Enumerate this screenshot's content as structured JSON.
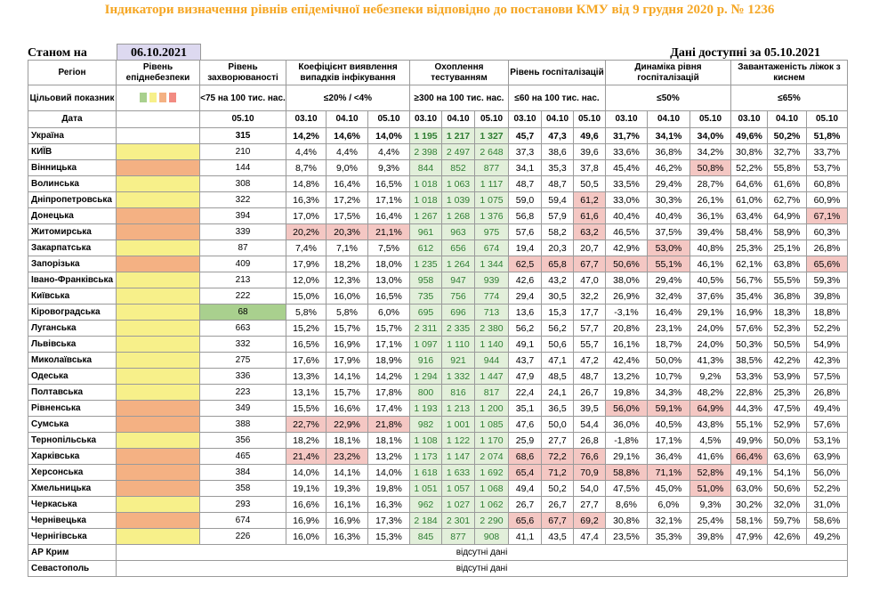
{
  "title": "Індикатори визначення рівнів епідемічної небезпеки відповідно до постанови КМУ від 9 грудня 2020 р. № 1236",
  "as_of_label": "Станом на",
  "as_of_date": "06.10.2021",
  "data_available": "Дані доступні за 05.10.2021",
  "headers": {
    "region": "Регіон",
    "target": "Цільовий показник",
    "date": "Дата",
    "level": "Рівень епіднебезпеки",
    "morbidity": "Рівень захворюваності",
    "morbidity_target": "<75 на 100 тис. нас.",
    "detection": "Коефіцієнт виявлення випадків інфікування",
    "detection_target": "≤20% / <4%",
    "testing": "Охоплення тестуванням",
    "testing_target": "≥300 на 100 тис. нас.",
    "hosp": "Рівень госпіталізацій",
    "hosp_target": "≤60 на 100 тис. нас.",
    "dynamic": "Динаміка рівня госпіталізацій",
    "dynamic_target": "≤50%",
    "beds": "Завантаженість ліжок з киснем",
    "beds_target": "≤65%",
    "level_swatches": [
      "#a9d08e",
      "#f7f08a",
      "#f4b183",
      "#f28b82"
    ],
    "dates": [
      "03.10",
      "04.10",
      "05.10"
    ],
    "single_date": "05.10"
  },
  "missing_text": "відсутні дані",
  "colors": {
    "yellow": "#f7f08a",
    "orange": "#f4b183",
    "green_bg": "#e2efda",
    "red_bg": "#f4c7c3",
    "title": "#f5a623"
  },
  "rows": [
    {
      "region": "Україна",
      "level": "",
      "morb": "315",
      "det": [
        "14,2%",
        "14,6%",
        "14,0%"
      ],
      "test": [
        "1 195",
        "1 217",
        "1 327"
      ],
      "hosp": [
        "45,7",
        "47,3",
        "49,6"
      ],
      "dyn": [
        "31,7%",
        "34,1%",
        "34,0%"
      ],
      "beds": [
        "49,6%",
        "50,2%",
        "51,8%"
      ],
      "hl": []
    },
    {
      "region": "КИЇВ",
      "level": "yellow",
      "morb": "210",
      "det": [
        "4,4%",
        "4,4%",
        "4,4%"
      ],
      "test": [
        "2 398",
        "2 497",
        "2 648"
      ],
      "hosp": [
        "37,3",
        "38,6",
        "39,6"
      ],
      "dyn": [
        "33,6%",
        "36,8%",
        "34,2%"
      ],
      "beds": [
        "30,8%",
        "32,7%",
        "33,7%"
      ],
      "hl": []
    },
    {
      "region": "Вінницька",
      "level": "orange",
      "morb": "144",
      "det": [
        "8,7%",
        "9,0%",
        "9,3%"
      ],
      "test": [
        "844",
        "852",
        "877"
      ],
      "hosp": [
        "34,1",
        "35,3",
        "37,8"
      ],
      "dyn": [
        "45,4%",
        "46,2%",
        "50,8%"
      ],
      "beds": [
        "52,2%",
        "55,8%",
        "53,7%"
      ],
      "hl": [
        "dyn2"
      ]
    },
    {
      "region": "Волинська",
      "level": "yellow",
      "morb": "308",
      "det": [
        "14,8%",
        "16,4%",
        "16,5%"
      ],
      "test": [
        "1 018",
        "1 063",
        "1 117"
      ],
      "hosp": [
        "48,7",
        "48,7",
        "50,5"
      ],
      "dyn": [
        "33,5%",
        "29,4%",
        "28,7%"
      ],
      "beds": [
        "64,6%",
        "61,6%",
        "60,8%"
      ],
      "hl": []
    },
    {
      "region": "Дніпропетровська",
      "level": "yellow",
      "morb": "322",
      "det": [
        "16,3%",
        "17,2%",
        "17,1%"
      ],
      "test": [
        "1 018",
        "1 039",
        "1 075"
      ],
      "hosp": [
        "59,0",
        "59,4",
        "61,2"
      ],
      "dyn": [
        "33,0%",
        "30,3%",
        "26,1%"
      ],
      "beds": [
        "61,0%",
        "62,7%",
        "60,9%"
      ],
      "hl": [
        "hosp2"
      ]
    },
    {
      "region": "Донецька",
      "level": "orange",
      "morb": "394",
      "det": [
        "17,0%",
        "17,5%",
        "16,4%"
      ],
      "test": [
        "1 267",
        "1 268",
        "1 376"
      ],
      "hosp": [
        "56,8",
        "57,9",
        "61,6"
      ],
      "dyn": [
        "40,4%",
        "40,4%",
        "36,1%"
      ],
      "beds": [
        "63,4%",
        "64,9%",
        "67,1%"
      ],
      "hl": [
        "hosp2",
        "beds2"
      ]
    },
    {
      "region": "Житомирська",
      "level": "orange",
      "morb": "339",
      "det": [
        "20,2%",
        "20,3%",
        "21,1%"
      ],
      "test": [
        "961",
        "963",
        "975"
      ],
      "hosp": [
        "57,6",
        "58,2",
        "63,2"
      ],
      "dyn": [
        "46,5%",
        "37,5%",
        "39,4%"
      ],
      "beds": [
        "58,4%",
        "58,9%",
        "60,3%"
      ],
      "hl": [
        "det0",
        "det1",
        "det2",
        "hosp2"
      ]
    },
    {
      "region": "Закарпатська",
      "level": "yellow",
      "morb": "87",
      "det": [
        "7,4%",
        "7,1%",
        "7,5%"
      ],
      "test": [
        "612",
        "656",
        "674"
      ],
      "hosp": [
        "19,4",
        "20,3",
        "20,7"
      ],
      "dyn": [
        "42,9%",
        "53,0%",
        "40,8%"
      ],
      "beds": [
        "25,3%",
        "25,1%",
        "26,8%"
      ],
      "hl": [
        "dyn1"
      ]
    },
    {
      "region": "Запорізька",
      "level": "orange",
      "morb": "409",
      "det": [
        "17,9%",
        "18,2%",
        "18,0%"
      ],
      "test": [
        "1 235",
        "1 264",
        "1 344"
      ],
      "hosp": [
        "62,5",
        "65,8",
        "67,7"
      ],
      "dyn": [
        "50,6%",
        "55,1%",
        "46,1%"
      ],
      "beds": [
        "62,1%",
        "63,8%",
        "65,6%"
      ],
      "hl": [
        "hosp0",
        "hosp1",
        "hosp2",
        "dyn0",
        "dyn1",
        "beds2"
      ]
    },
    {
      "region": "Івано-Франківська",
      "level": "yellow",
      "morb": "213",
      "det": [
        "12,0%",
        "12,3%",
        "13,0%"
      ],
      "test": [
        "958",
        "947",
        "939"
      ],
      "hosp": [
        "42,6",
        "43,2",
        "47,0"
      ],
      "dyn": [
        "38,0%",
        "29,4%",
        "40,5%"
      ],
      "beds": [
        "56,7%",
        "55,5%",
        "59,3%"
      ],
      "hl": []
    },
    {
      "region": "Київська",
      "level": "yellow",
      "morb": "222",
      "det": [
        "15,0%",
        "16,0%",
        "16,5%"
      ],
      "test": [
        "735",
        "756",
        "774"
      ],
      "hosp": [
        "29,4",
        "30,5",
        "32,2"
      ],
      "dyn": [
        "26,9%",
        "32,4%",
        "37,6%"
      ],
      "beds": [
        "35,4%",
        "36,8%",
        "39,8%"
      ],
      "hl": []
    },
    {
      "region": "Кіровоградська",
      "level": "yellow",
      "morb": "68",
      "det": [
        "5,8%",
        "5,8%",
        "6,0%"
      ],
      "test": [
        "695",
        "696",
        "713"
      ],
      "hosp": [
        "13,6",
        "15,3",
        "17,7"
      ],
      "dyn": [
        "-3,1%",
        "16,4%",
        "29,1%"
      ],
      "beds": [
        "16,9%",
        "18,3%",
        "18,8%"
      ],
      "hl": [
        "morbg"
      ]
    },
    {
      "region": "Луганська",
      "level": "yellow",
      "morb": "663",
      "det": [
        "15,2%",
        "15,7%",
        "15,7%"
      ],
      "test": [
        "2 311",
        "2 335",
        "2 380"
      ],
      "hosp": [
        "56,2",
        "56,2",
        "57,7"
      ],
      "dyn": [
        "20,8%",
        "23,1%",
        "24,0%"
      ],
      "beds": [
        "57,6%",
        "52,3%",
        "52,2%"
      ],
      "hl": []
    },
    {
      "region": "Львівська",
      "level": "yellow",
      "morb": "332",
      "det": [
        "16,5%",
        "16,9%",
        "17,1%"
      ],
      "test": [
        "1 097",
        "1 110",
        "1 140"
      ],
      "hosp": [
        "49,1",
        "50,6",
        "55,7"
      ],
      "dyn": [
        "16,1%",
        "18,7%",
        "24,0%"
      ],
      "beds": [
        "50,3%",
        "50,5%",
        "54,9%"
      ],
      "hl": []
    },
    {
      "region": "Миколаївська",
      "level": "yellow",
      "morb": "275",
      "det": [
        "17,6%",
        "17,9%",
        "18,9%"
      ],
      "test": [
        "916",
        "921",
        "944"
      ],
      "hosp": [
        "43,7",
        "47,1",
        "47,2"
      ],
      "dyn": [
        "42,4%",
        "50,0%",
        "41,3%"
      ],
      "beds": [
        "38,5%",
        "42,2%",
        "42,3%"
      ],
      "hl": []
    },
    {
      "region": "Одеська",
      "level": "yellow",
      "morb": "336",
      "det": [
        "13,3%",
        "14,1%",
        "14,2%"
      ],
      "test": [
        "1 294",
        "1 332",
        "1 447"
      ],
      "hosp": [
        "47,9",
        "48,5",
        "48,7"
      ],
      "dyn": [
        "13,2%",
        "10,7%",
        "9,2%"
      ],
      "beds": [
        "53,3%",
        "53,9%",
        "57,5%"
      ],
      "hl": []
    },
    {
      "region": "Полтавська",
      "level": "yellow",
      "morb": "223",
      "det": [
        "13,1%",
        "15,7%",
        "17,8%"
      ],
      "test": [
        "800",
        "816",
        "817"
      ],
      "hosp": [
        "22,4",
        "24,1",
        "26,7"
      ],
      "dyn": [
        "19,8%",
        "34,3%",
        "48,2%"
      ],
      "beds": [
        "22,8%",
        "25,3%",
        "26,8%"
      ],
      "hl": []
    },
    {
      "region": "Рівненська",
      "level": "orange",
      "morb": "349",
      "det": [
        "15,5%",
        "16,6%",
        "17,4%"
      ],
      "test": [
        "1 193",
        "1 213",
        "1 200"
      ],
      "hosp": [
        "35,1",
        "36,5",
        "39,5"
      ],
      "dyn": [
        "56,0%",
        "59,1%",
        "64,9%"
      ],
      "beds": [
        "44,3%",
        "47,5%",
        "49,4%"
      ],
      "hl": [
        "dyn0",
        "dyn1",
        "dyn2"
      ]
    },
    {
      "region": "Сумська",
      "level": "orange",
      "morb": "388",
      "det": [
        "22,7%",
        "22,9%",
        "21,8%"
      ],
      "test": [
        "982",
        "1 001",
        "1 085"
      ],
      "hosp": [
        "47,6",
        "50,0",
        "54,4"
      ],
      "dyn": [
        "36,0%",
        "40,5%",
        "43,8%"
      ],
      "beds": [
        "55,1%",
        "52,9%",
        "57,6%"
      ],
      "hl": [
        "det0",
        "det1",
        "det2"
      ]
    },
    {
      "region": "Тернопільська",
      "level": "yellow",
      "morb": "356",
      "det": [
        "18,2%",
        "18,1%",
        "18,1%"
      ],
      "test": [
        "1 108",
        "1 122",
        "1 170"
      ],
      "hosp": [
        "25,9",
        "27,7",
        "26,8"
      ],
      "dyn": [
        "-1,8%",
        "17,1%",
        "4,5%"
      ],
      "beds": [
        "49,9%",
        "50,0%",
        "53,1%"
      ],
      "hl": []
    },
    {
      "region": "Харківська",
      "level": "orange",
      "morb": "465",
      "det": [
        "21,4%",
        "23,2%",
        "13,2%"
      ],
      "test": [
        "1 173",
        "1 147",
        "2 074"
      ],
      "hosp": [
        "68,6",
        "72,2",
        "76,6"
      ],
      "dyn": [
        "29,1%",
        "36,4%",
        "41,6%"
      ],
      "beds": [
        "66,4%",
        "63,6%",
        "63,9%"
      ],
      "hl": [
        "det0",
        "det1",
        "hosp0",
        "hosp1",
        "hosp2",
        "beds0"
      ]
    },
    {
      "region": "Херсонська",
      "level": "orange",
      "morb": "384",
      "det": [
        "14,0%",
        "14,1%",
        "14,0%"
      ],
      "test": [
        "1 618",
        "1 633",
        "1 692"
      ],
      "hosp": [
        "65,4",
        "71,2",
        "70,9"
      ],
      "dyn": [
        "58,8%",
        "71,1%",
        "52,8%"
      ],
      "beds": [
        "49,1%",
        "54,1%",
        "56,0%"
      ],
      "hl": [
        "hosp0",
        "hosp1",
        "hosp2",
        "dyn0",
        "dyn1",
        "dyn2"
      ]
    },
    {
      "region": "Хмельницька",
      "level": "orange",
      "morb": "358",
      "det": [
        "19,1%",
        "19,3%",
        "19,8%"
      ],
      "test": [
        "1 051",
        "1 057",
        "1 068"
      ],
      "hosp": [
        "49,4",
        "50,2",
        "54,0"
      ],
      "dyn": [
        "47,5%",
        "45,0%",
        "51,0%"
      ],
      "beds": [
        "63,0%",
        "50,6%",
        "52,2%"
      ],
      "hl": [
        "dyn2"
      ]
    },
    {
      "region": "Черкаська",
      "level": "yellow",
      "morb": "293",
      "det": [
        "16,6%",
        "16,1%",
        "16,3%"
      ],
      "test": [
        "962",
        "1 027",
        "1 062"
      ],
      "hosp": [
        "26,7",
        "26,7",
        "27,7"
      ],
      "dyn": [
        "8,6%",
        "6,0%",
        "9,3%"
      ],
      "beds": [
        "30,2%",
        "32,0%",
        "31,0%"
      ],
      "hl": []
    },
    {
      "region": "Чернівецька",
      "level": "orange",
      "morb": "674",
      "det": [
        "16,9%",
        "16,9%",
        "17,3%"
      ],
      "test": [
        "2 184",
        "2 301",
        "2 290"
      ],
      "hosp": [
        "65,6",
        "67,7",
        "69,2"
      ],
      "dyn": [
        "30,8%",
        "32,1%",
        "25,4%"
      ],
      "beds": [
        "58,1%",
        "59,7%",
        "58,6%"
      ],
      "hl": [
        "hosp0",
        "hosp1",
        "hosp2"
      ]
    },
    {
      "region": "Чернігівська",
      "level": "yellow",
      "morb": "226",
      "det": [
        "16,0%",
        "16,3%",
        "15,3%"
      ],
      "test": [
        "845",
        "877",
        "908"
      ],
      "hosp": [
        "41,1",
        "43,5",
        "47,4"
      ],
      "dyn": [
        "23,5%",
        "35,3%",
        "39,8%"
      ],
      "beds": [
        "47,9%",
        "42,6%",
        "49,2%"
      ],
      "hl": []
    }
  ],
  "missing_rows": [
    "АР Крим",
    "Севастополь"
  ]
}
